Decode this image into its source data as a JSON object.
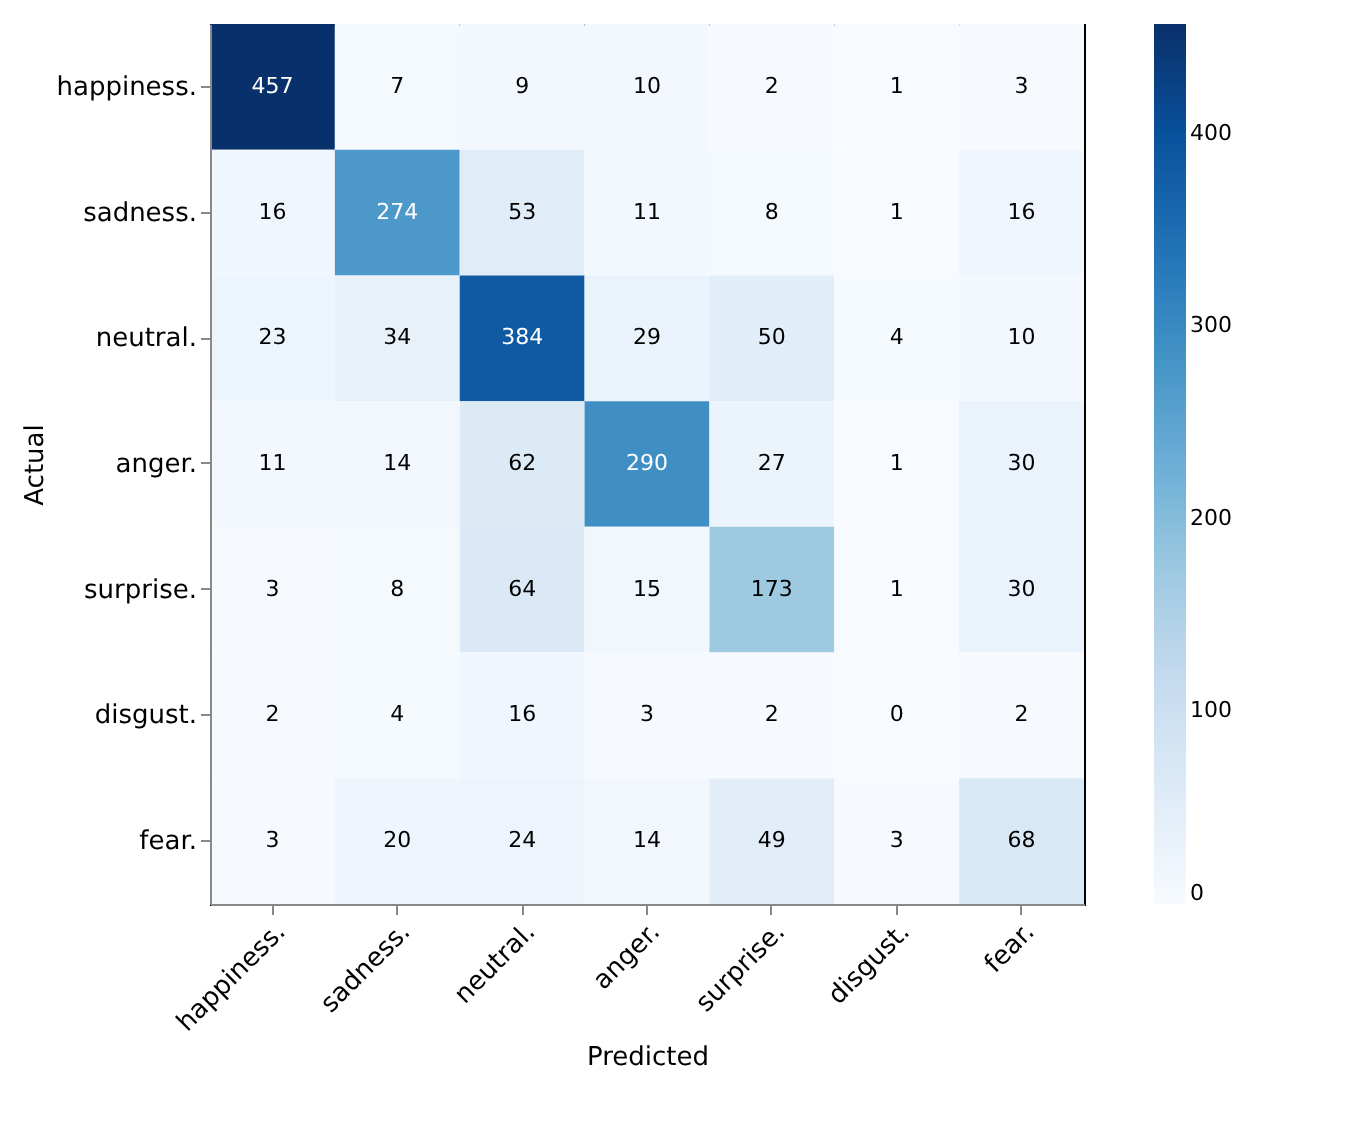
{
  "chart_data": {
    "type": "heatmap",
    "xlabel": "Predicted",
    "ylabel": "Actual",
    "categories": [
      "happiness.",
      "sadness.",
      "neutral.",
      "anger.",
      "surprise.",
      "disgust.",
      "fear."
    ],
    "y_categories": [
      "happiness.",
      "sadness.",
      "neutral.",
      "anger.",
      "surprise.",
      "disgust.",
      "fear."
    ],
    "cells": [
      [
        457,
        7,
        9,
        10,
        2,
        1,
        3
      ],
      [
        16,
        274,
        53,
        11,
        8,
        1,
        16
      ],
      [
        23,
        34,
        384,
        29,
        50,
        4,
        10
      ],
      [
        11,
        14,
        62,
        290,
        27,
        1,
        30
      ],
      [
        3,
        8,
        64,
        15,
        173,
        1,
        30
      ],
      [
        2,
        4,
        16,
        3,
        2,
        0,
        2
      ],
      [
        3,
        20,
        24,
        14,
        49,
        3,
        68
      ]
    ],
    "clim": [
      0,
      457
    ],
    "cticks": [
      0,
      100,
      200,
      300,
      400
    ],
    "data_labels": true,
    "grid": false
  }
}
